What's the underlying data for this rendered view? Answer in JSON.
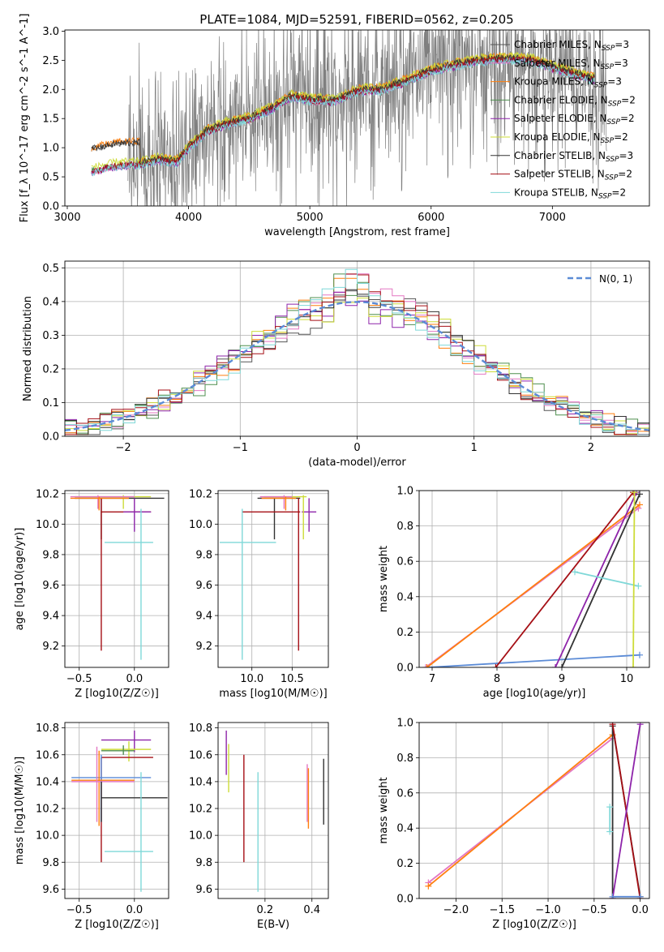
{
  "chart_data": [
    {
      "id": "spectrum",
      "type": "line",
      "title": "PLATE=1084, MJD=52591, FIBERID=0562, z=0.205",
      "xlabel": "wavelength [Angstrom, rest frame]",
      "ylabel": "Flux [f_λ 10^-17 erg cm^-2 s^-1 A^-1]",
      "xlim": [
        2980,
        7800
      ],
      "ylim": [
        0,
        3.02
      ],
      "xticks": [
        3000,
        4000,
        5000,
        6000,
        7000
      ],
      "yticks": [
        0.0,
        0.5,
        1.0,
        1.5,
        2.0,
        2.5,
        3.0
      ],
      "data_range": [
        3500,
        7450
      ],
      "model_range": [
        3200,
        7350
      ],
      "series": [
        {
          "name": "Chabrier MILES, N_SSP=3",
          "color": "#555555"
        },
        {
          "name": "Salpeter MILES, N_SSP=3",
          "color": "#e377c2"
        },
        {
          "name": "Kroupa MILES, N_SSP=3",
          "color": "#ff7f0e"
        },
        {
          "name": "Chabrier ELODIE, N_SSP=2",
          "color": "#4f8f4f"
        },
        {
          "name": "Salpeter ELODIE, N_SSP=2",
          "color": "#8e24aa"
        },
        {
          "name": "Kroupa ELODIE, N_SSP=2",
          "color": "#cddc39"
        },
        {
          "name": "Chabrier STELIB, N_SSP=3",
          "color": "#333333"
        },
        {
          "name": "Salpeter STELIB, N_SSP=2",
          "color": "#a50f15"
        },
        {
          "name": "Kroupa STELIB, N_SSP=2",
          "color": "#7fd8d8"
        }
      ],
      "continuum": {
        "x": [
          3200,
          3400,
          3600,
          3750,
          3900,
          4000,
          4150,
          4300,
          4500,
          4700,
          4850,
          5000,
          5200,
          5400,
          5600,
          5800,
          6000,
          6200,
          6400,
          6600,
          6800,
          7000,
          7200,
          7350
        ],
        "y": [
          0.6,
          0.7,
          0.72,
          0.8,
          0.75,
          1.0,
          1.28,
          1.4,
          1.5,
          1.68,
          1.88,
          1.82,
          1.8,
          1.98,
          2.0,
          2.15,
          2.32,
          2.42,
          2.5,
          2.52,
          2.52,
          2.38,
          2.25,
          2.18
        ]
      }
    },
    {
      "id": "residuals",
      "type": "line",
      "xlabel": "(data-model)/error",
      "ylabel": "Normed distribution",
      "xlim": [
        -2.5,
        2.5
      ],
      "ylim": [
        0,
        0.52
      ],
      "xticks": [
        -2,
        -1,
        0,
        1,
        2
      ],
      "yticks": [
        0.0,
        0.1,
        0.2,
        0.3,
        0.4,
        0.5
      ],
      "legend": "N(0, 1)",
      "normal_color": "#5b8bd6"
    },
    {
      "id": "age-Z",
      "type": "scatter",
      "xlabel": "Z [log10(Z/Z☉)]",
      "ylabel": "age  [log10(age/yr)]",
      "xlim": [
        -0.63,
        0.31
      ],
      "ylim": [
        9.06,
        10.22
      ],
      "xticks": [
        -0.5,
        0.0
      ],
      "yticks": [
        9.2,
        9.4,
        9.6,
        9.8,
        10.0,
        10.2
      ],
      "points": [
        {
          "color": "#333333",
          "x": -0.3,
          "y": 10.17,
          "xlo": -0.54,
          "xhi": 0.27,
          "ylo": 9.9,
          "yhi": 10.17
        },
        {
          "color": "#a50f15",
          "x": -0.3,
          "y": 10.08,
          "xlo": -0.3,
          "xhi": 0.15,
          "ylo": 9.17,
          "yhi": 10.17
        },
        {
          "color": "#8e24aa",
          "x": 0.0,
          "y": 10.08,
          "xlo": -0.1,
          "xhi": 0.15,
          "ylo": 9.95,
          "yhi": 10.17
        },
        {
          "color": "#7fd8d8",
          "x": 0.06,
          "y": 9.88,
          "xlo": -0.27,
          "xhi": 0.17,
          "ylo": 9.11,
          "yhi": 10.1
        },
        {
          "color": "#cddc39",
          "x": -0.1,
          "y": 10.18,
          "xlo": -0.54,
          "xhi": 0.15,
          "ylo": 10.1,
          "yhi": 10.19
        },
        {
          "color": "#e377c2",
          "x": -0.33,
          "y": 10.18,
          "xlo": -0.58,
          "xhi": 0.0,
          "ylo": 10.1,
          "yhi": 10.19
        },
        {
          "color": "#ff7f0e",
          "x": -0.32,
          "y": 10.17,
          "xlo": -0.58,
          "xhi": -0.05,
          "ylo": 10.09,
          "yhi": 10.18
        }
      ]
    },
    {
      "id": "age-mass",
      "type": "scatter",
      "xlabel": "mass [log10(M/M☉)]",
      "ylabel": "",
      "xlim": [
        9.58,
        10.95
      ],
      "ylim": [
        9.06,
        10.22
      ],
      "xticks": [
        10.0,
        10.5
      ],
      "yticks": [
        9.2,
        9.4,
        9.6,
        9.8,
        10.0,
        10.2
      ],
      "points": [
        {
          "color": "#333333",
          "x": 10.28,
          "y": 10.17,
          "xlo": 10.07,
          "xhi": 10.6,
          "ylo": 9.9,
          "yhi": 10.17
        },
        {
          "color": "#a50f15",
          "x": 10.58,
          "y": 10.08,
          "xlo": 9.88,
          "xhi": 10.6,
          "ylo": 9.17,
          "yhi": 10.17
        },
        {
          "color": "#8e24aa",
          "x": 10.71,
          "y": 10.08,
          "xlo": 10.62,
          "xhi": 10.8,
          "ylo": 9.95,
          "yhi": 10.17
        },
        {
          "color": "#7fd8d8",
          "x": 9.88,
          "y": 9.88,
          "xlo": 9.6,
          "xhi": 10.3,
          "ylo": 9.11,
          "yhi": 10.1
        },
        {
          "color": "#cddc39",
          "x": 10.64,
          "y": 10.18,
          "xlo": 10.15,
          "xhi": 10.68,
          "ylo": 9.9,
          "yhi": 10.19
        },
        {
          "color": "#e377c2",
          "x": 10.4,
          "y": 10.18,
          "xlo": 10.1,
          "xhi": 10.5,
          "ylo": 10.1,
          "yhi": 10.19
        },
        {
          "color": "#ff7f0e",
          "x": 10.42,
          "y": 10.17,
          "xlo": 10.12,
          "xhi": 10.55,
          "ylo": 10.09,
          "yhi": 10.18
        }
      ]
    },
    {
      "id": "weight-age",
      "type": "line",
      "xlabel": "age  [log10(age/yr)]",
      "ylabel": "mass weight",
      "xlim": [
        6.8,
        10.35
      ],
      "ylim": [
        0,
        1
      ],
      "xticks": [
        7,
        8,
        9,
        10
      ],
      "yticks": [
        0.0,
        0.2,
        0.4,
        0.6,
        0.8,
        1.0
      ],
      "series": [
        {
          "color": "#5b8bd6",
          "x": [
            6.95,
            10.2
          ],
          "y": [
            0.0,
            0.07
          ]
        },
        {
          "color": "#e377c2",
          "x": [
            6.9,
            10.18
          ],
          "y": [
            0.0,
            0.9
          ]
        },
        {
          "color": "#ff7f0e",
          "x": [
            6.92,
            10.2
          ],
          "y": [
            0.0,
            0.92
          ]
        },
        {
          "color": "#a50f15",
          "x": [
            7.98,
            10.1
          ],
          "y": [
            0.0,
            0.99
          ]
        },
        {
          "color": "#8e24aa",
          "x": [
            8.9,
            10.15
          ],
          "y": [
            0.0,
            0.99
          ]
        },
        {
          "color": "#333333",
          "x": [
            9.0,
            10.2
          ],
          "y": [
            0.0,
            0.98
          ]
        },
        {
          "color": "#7fd8d8",
          "x": [
            9.2,
            10.18
          ],
          "y": [
            0.54,
            0.46
          ]
        },
        {
          "color": "#cddc39",
          "x": [
            10.1,
            10.12
          ],
          "y": [
            0.0,
            0.99
          ]
        }
      ]
    },
    {
      "id": "mass-Z",
      "type": "scatter",
      "xlabel": "Z [log10(Z/Z☉)]",
      "ylabel": "mass [log10(M/M☉)]",
      "xlim": [
        -0.63,
        0.31
      ],
      "ylim": [
        9.53,
        10.84
      ],
      "xticks": [
        -0.5,
        0.0
      ],
      "yticks": [
        9.6,
        9.8,
        10.0,
        10.2,
        10.4,
        10.6,
        10.8
      ],
      "points": [
        {
          "color": "#8e24aa",
          "x": 0.0,
          "y": 10.71,
          "xlo": -0.3,
          "xhi": 0.15,
          "ylo": 10.62,
          "yhi": 10.78
        },
        {
          "color": "#cddc39",
          "x": -0.05,
          "y": 10.64,
          "xlo": -0.3,
          "xhi": 0.15,
          "ylo": 10.55,
          "yhi": 10.7
        },
        {
          "color": "#4f8f4f",
          "x": -0.1,
          "y": 10.63,
          "xlo": -0.3,
          "xhi": 0.0,
          "ylo": 10.6,
          "yhi": 10.67
        },
        {
          "color": "#a50f15",
          "x": -0.3,
          "y": 10.58,
          "xlo": -0.3,
          "xhi": 0.17,
          "ylo": 9.8,
          "yhi": 10.58
        },
        {
          "color": "#5b8bd6",
          "x": -0.3,
          "y": 10.43,
          "xlo": -0.57,
          "xhi": 0.15,
          "ylo": 10.1,
          "yhi": 10.6
        },
        {
          "color": "#ff7f0e",
          "x": -0.32,
          "y": 10.41,
          "xlo": -0.57,
          "xhi": 0.0,
          "ylo": 10.07,
          "yhi": 10.63
        },
        {
          "color": "#e377c2",
          "x": -0.34,
          "y": 10.4,
          "xlo": -0.57,
          "xhi": 0.0,
          "ylo": 10.1,
          "yhi": 10.66
        },
        {
          "color": "#333333",
          "x": -0.3,
          "y": 10.28,
          "xlo": -0.3,
          "xhi": 0.3,
          "ylo": 10.1,
          "yhi": 10.4
        },
        {
          "color": "#7fd8d8",
          "x": 0.06,
          "y": 9.88,
          "xlo": -0.27,
          "xhi": 0.17,
          "ylo": 9.58,
          "yhi": 10.47
        }
      ]
    },
    {
      "id": "mass-EBV",
      "type": "scatter",
      "xlabel": "E(B-V)",
      "ylabel": "",
      "xlim": [
        0.0,
        0.47
      ],
      "ylim": [
        9.53,
        10.84
      ],
      "xticks": [
        0.2,
        0.4
      ],
      "yticks": [
        9.6,
        9.8,
        10.0,
        10.2,
        10.4,
        10.6,
        10.8
      ],
      "points": [
        {
          "color": "#8e24aa",
          "x": 0.035,
          "ylo": 10.45,
          "yhi": 10.78
        },
        {
          "color": "#cddc39",
          "x": 0.045,
          "ylo": 10.32,
          "yhi": 10.68
        },
        {
          "color": "#a50f15",
          "x": 0.11,
          "ylo": 9.8,
          "yhi": 10.6
        },
        {
          "color": "#7fd8d8",
          "x": 0.17,
          "ylo": 9.58,
          "yhi": 10.47
        },
        {
          "color": "#e377c2",
          "x": 0.38,
          "ylo": 10.1,
          "yhi": 10.53
        },
        {
          "color": "#ff7f0e",
          "x": 0.385,
          "ylo": 10.05,
          "yhi": 10.5
        },
        {
          "color": "#333333",
          "x": 0.45,
          "ylo": 10.08,
          "yhi": 10.57
        }
      ]
    },
    {
      "id": "weight-Z",
      "type": "line",
      "xlabel": "Z [log10(Z/Z☉)]",
      "ylabel": "mass weight",
      "xlim": [
        -2.4,
        0.1
      ],
      "ylim": [
        0,
        1
      ],
      "xticks": [
        -2.0,
        -1.5,
        -1.0,
        -0.5,
        0.0
      ],
      "yticks": [
        0.0,
        0.2,
        0.4,
        0.6,
        0.8,
        1.0
      ],
      "series": [
        {
          "color": "#e377c2",
          "x": [
            -2.3,
            -0.3
          ],
          "y": [
            0.09,
            0.91
          ]
        },
        {
          "color": "#ff7f0e",
          "x": [
            -2.3,
            -0.3
          ],
          "y": [
            0.07,
            0.93
          ]
        },
        {
          "color": "#333333",
          "x": [
            -0.3,
            -0.3,
            0.0
          ],
          "y": [
            0.0,
            0.98,
            0.01
          ]
        },
        {
          "color": "#a50f15",
          "x": [
            -0.3,
            0.0
          ],
          "y": [
            0.99,
            0.0
          ]
        },
        {
          "color": "#8e24aa",
          "x": [
            -0.3,
            0.0
          ],
          "y": [
            0.0,
            0.99
          ]
        },
        {
          "color": "#5b8bd6",
          "x": [
            -0.3,
            0.0
          ],
          "y": [
            0.01,
            0.01
          ]
        },
        {
          "color": "#7fd8d8",
          "x": [
            -0.33,
            -0.33
          ],
          "y": [
            0.38,
            0.52
          ]
        }
      ]
    }
  ]
}
